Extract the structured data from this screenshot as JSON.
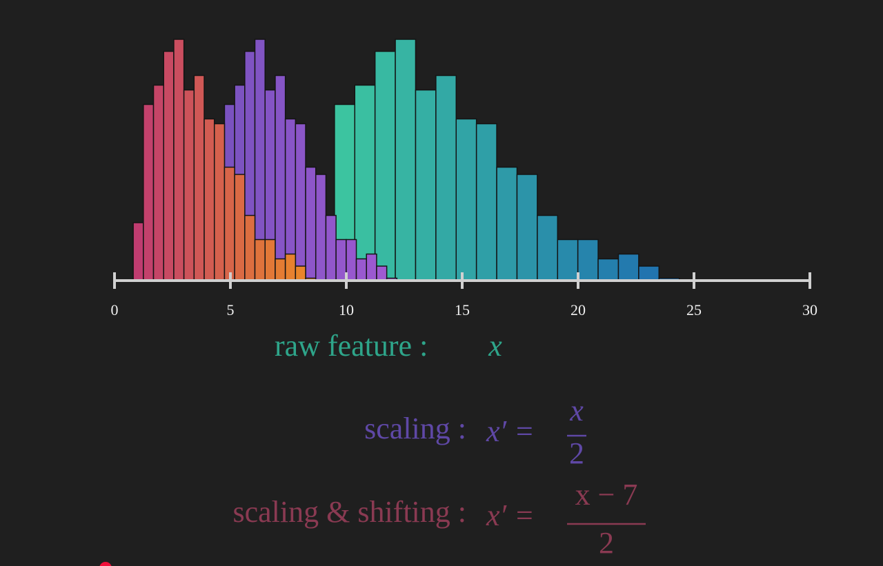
{
  "chart_data": {
    "type": "histogram",
    "xlim": [
      0,
      30
    ],
    "ylim": [
      0,
      100
    ],
    "xticks": [
      0,
      5,
      10,
      15,
      20,
      25,
      30
    ],
    "series": [
      {
        "colors": [
          "#3cc4a0",
          "#1f6fb0"
        ],
        "bins": [
          9.49,
          10.365,
          11.24,
          12.115,
          12.99,
          13.865,
          14.74,
          15.615,
          16.49,
          17.365,
          18.24,
          19.115,
          19.99,
          20.865,
          21.74,
          22.615,
          23.49,
          24.365
        ],
        "values": [
          73,
          81,
          95,
          100,
          79,
          85,
          67,
          65,
          47,
          44,
          27,
          17,
          17,
          9,
          11,
          6,
          1
        ]
      },
      {
        "colors": [
          "#7a52c0",
          "#a05ad2"
        ],
        "bins": [
          4.745,
          5.1825,
          5.62,
          6.0575,
          6.495,
          6.9325,
          7.37,
          7.8075,
          8.245,
          8.6825,
          9.12,
          9.5575,
          9.995,
          10.4325,
          10.87,
          11.3075,
          11.745,
          12.1825
        ],
        "values": [
          73,
          81,
          95,
          100,
          79,
          85,
          67,
          65,
          47,
          44,
          27,
          17,
          17,
          9,
          11,
          6,
          1
        ]
      },
      {
        "colors": [
          "#c03c70",
          "#ec8a26"
        ],
        "bins": [
          0.8075,
          1.245,
          1.6825,
          2.12,
          2.5575,
          2.995,
          3.4325,
          3.87,
          4.3075,
          4.745,
          5.1825,
          5.62,
          6.0575,
          6.495,
          6.9325,
          7.37,
          7.8075,
          8.245,
          8.6825
        ],
        "values": [
          24,
          73,
          81,
          95,
          100,
          79,
          85,
          67,
          65,
          47,
          44,
          27,
          17,
          17,
          9,
          11,
          6,
          1
        ]
      }
    ],
    "annotations": [
      {
        "label": "raw feature :",
        "formula": "x",
        "color": "#2ea58a"
      },
      {
        "label": "scaling :",
        "lhs": "x′ =",
        "numerator": "x",
        "denominator": "2",
        "color": "#5f48a6"
      },
      {
        "label": "scaling & shifting :",
        "lhs": "x′ =",
        "numerator": "x − 7",
        "denominator": "2",
        "color": "#8a3a52"
      }
    ]
  }
}
